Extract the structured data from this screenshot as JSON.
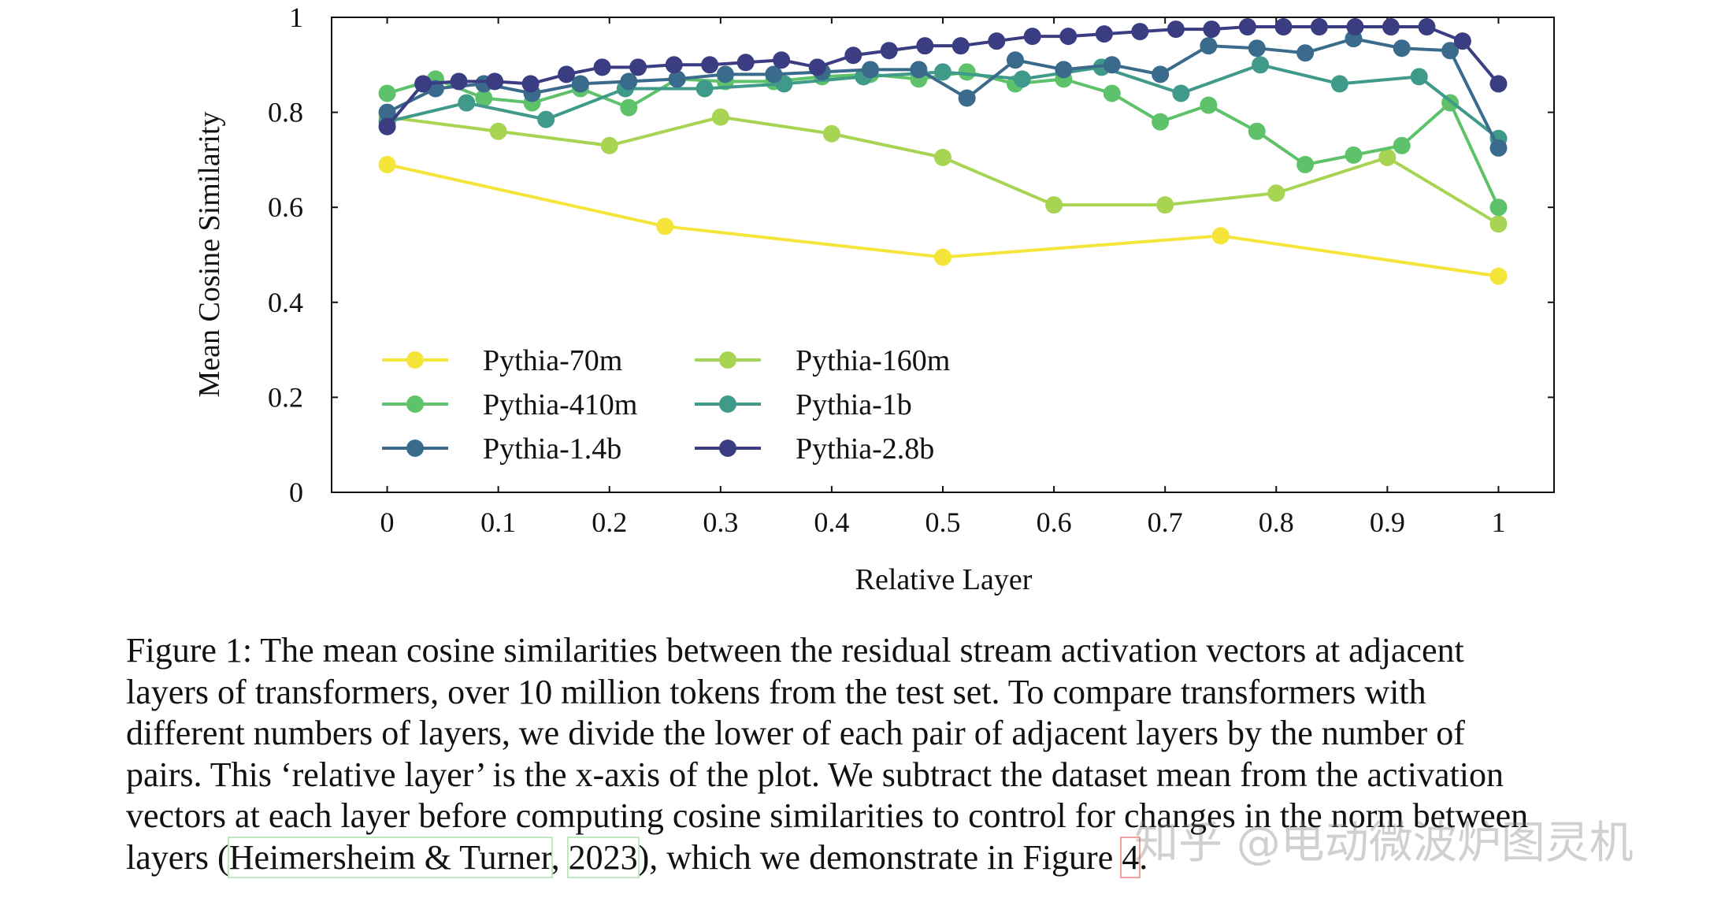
{
  "chart_data": {
    "type": "line",
    "xlabel": "Relative Layer",
    "ylabel": "Mean Cosine Similarity",
    "xlim": [
      -0.05,
      1.05
    ],
    "ylim": [
      0,
      1
    ],
    "xticks": [
      "0",
      "0.1",
      "0.2",
      "0.3",
      "0.4",
      "0.5",
      "0.6",
      "0.7",
      "0.8",
      "0.9",
      "1"
    ],
    "yticks": [
      "0",
      "0.2",
      "0.4",
      "0.6",
      "0.8",
      "1"
    ],
    "legend_position": "lower-left",
    "series": [
      {
        "name": "Pythia-70m",
        "color": "#f5e53a",
        "x": [
          0,
          0.25,
          0.5,
          0.75,
          1
        ],
        "y": [
          0.69,
          0.56,
          0.495,
          0.54,
          0.455
        ]
      },
      {
        "name": "Pythia-160m",
        "color": "#a7d452",
        "x": [
          0,
          0.1,
          0.2,
          0.3,
          0.4,
          0.5,
          0.6,
          0.7,
          0.8,
          0.9,
          1
        ],
        "y": [
          0.79,
          0.76,
          0.73,
          0.79,
          0.755,
          0.705,
          0.605,
          0.605,
          0.63,
          0.705,
          0.565
        ]
      },
      {
        "name": "Pythia-410m",
        "color": "#5ec26b",
        "x": [
          0,
          0.0435,
          0.087,
          0.1304,
          0.1739,
          0.2174,
          0.2609,
          0.3043,
          0.3478,
          0.3913,
          0.4348,
          0.4783,
          0.5217,
          0.5652,
          0.6087,
          0.6522,
          0.6957,
          0.7391,
          0.7826,
          0.8261,
          0.8696,
          0.913,
          0.9565,
          1
        ],
        "y": [
          0.84,
          0.87,
          0.83,
          0.82,
          0.85,
          0.81,
          0.87,
          0.865,
          0.865,
          0.875,
          0.88,
          0.87,
          0.885,
          0.86,
          0.87,
          0.84,
          0.78,
          0.815,
          0.76,
          0.69,
          0.71,
          0.73,
          0.82,
          0.6
        ]
      },
      {
        "name": "Pythia-1b",
        "color": "#3f9a8a",
        "x": [
          0,
          0.0714,
          0.1429,
          0.2143,
          0.2857,
          0.3571,
          0.4286,
          0.5,
          0.5714,
          0.6429,
          0.7143,
          0.7857,
          0.8571,
          0.9286,
          1
        ],
        "y": [
          0.78,
          0.82,
          0.785,
          0.85,
          0.85,
          0.86,
          0.875,
          0.885,
          0.87,
          0.895,
          0.84,
          0.9,
          0.86,
          0.875,
          0.745
        ]
      },
      {
        "name": "Pythia-1.4b",
        "color": "#3a6a8c",
        "x": [
          0,
          0.0435,
          0.087,
          0.1304,
          0.1739,
          0.2174,
          0.2609,
          0.3043,
          0.3478,
          0.3913,
          0.4348,
          0.4783,
          0.5217,
          0.5652,
          0.6087,
          0.6522,
          0.6957,
          0.7391,
          0.7826,
          0.8261,
          0.8696,
          0.913,
          0.9565,
          1
        ],
        "y": [
          0.8,
          0.85,
          0.86,
          0.84,
          0.86,
          0.865,
          0.87,
          0.88,
          0.88,
          0.885,
          0.89,
          0.89,
          0.83,
          0.91,
          0.89,
          0.9,
          0.88,
          0.94,
          0.935,
          0.925,
          0.955,
          0.935,
          0.93,
          0.725
        ]
      },
      {
        "name": "Pythia-2.8b",
        "color": "#3b3d82",
        "x": [
          0,
          0.0323,
          0.0645,
          0.0968,
          0.129,
          0.1613,
          0.1935,
          0.2258,
          0.2581,
          0.2903,
          0.3226,
          0.3548,
          0.3871,
          0.4194,
          0.4516,
          0.4839,
          0.5161,
          0.5484,
          0.5806,
          0.6129,
          0.6452,
          0.6774,
          0.7097,
          0.7419,
          0.7742,
          0.8065,
          0.8387,
          0.871,
          0.9032,
          0.9355,
          0.9677,
          1
        ],
        "y": [
          0.77,
          0.86,
          0.865,
          0.865,
          0.86,
          0.88,
          0.895,
          0.895,
          0.9,
          0.9,
          0.905,
          0.91,
          0.895,
          0.92,
          0.93,
          0.94,
          0.94,
          0.95,
          0.96,
          0.96,
          0.965,
          0.97,
          0.975,
          0.975,
          0.98,
          0.98,
          0.98,
          0.98,
          0.98,
          0.98,
          0.95,
          0.86
        ]
      }
    ]
  },
  "caption": {
    "lines": [
      "Figure 1: The mean cosine similarities between the residual stream activation vectors at adjacent",
      "layers of transformers, over 10 million tokens from the test set.  To compare transformers with",
      "different numbers of layers, we divide the lower of each pair of adjacent layers by the number of",
      "pairs. This ‘relative layer’ is the x-axis of the plot. We subtract the dataset mean from the activation",
      "vectors at each layer before computing cosine similarities to control for changes in the norm between"
    ],
    "last_line": {
      "prefix": "layers (",
      "cite_author": "Heimersheim & Turner",
      "sep": ", ",
      "cite_year": "2023",
      "middle": "), which we demonstrate in Figure ",
      "fig_ref": "4",
      "suffix": "."
    }
  },
  "watermark": "知乎 @电动微波炉图灵机"
}
